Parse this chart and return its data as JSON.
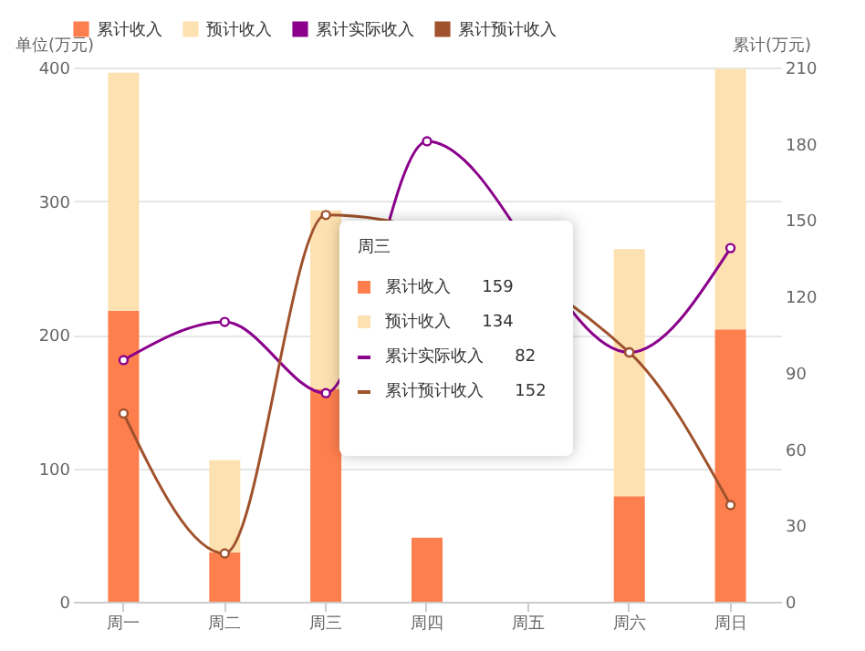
{
  "chart_data": {
    "type": "bar",
    "stacked": true,
    "ylabel": "单位(万元)",
    "y2label": "累计(万元)",
    "categories": [
      "周一",
      "周二",
      "周三",
      "周四",
      "周五",
      "周六",
      "周日"
    ],
    "series": [
      {
        "name": "累计收入",
        "color": "#fe7f4e",
        "values": [
          218,
          37,
          159,
          48,
          null,
          79,
          204
        ]
      },
      {
        "name": "预计收入",
        "color": "#fde1b0",
        "values": [
          178,
          69,
          134,
          null,
          null,
          185,
          195
        ]
      },
      {
        "name": "累计实际收入",
        "type": "line",
        "axis": "y2",
        "color": "#8b008b",
        "values": [
          95,
          110,
          82,
          181,
          null,
          98,
          139
        ]
      },
      {
        "name": "累计预计收入",
        "type": "line",
        "axis": "y2",
        "color": "#a0522d",
        "values": [
          74,
          19,
          152,
          null,
          null,
          98,
          38
        ]
      }
    ],
    "ylim": [
      0,
      400
    ],
    "yticks": [
      0,
      100,
      200,
      300,
      400
    ],
    "y2lim": [
      0,
      210
    ],
    "y2ticks": [
      0,
      30,
      60,
      90,
      120,
      150,
      180,
      210
    ],
    "grid": "y",
    "legend": "top",
    "marker": "circle",
    "line_style": "solid",
    "annotations": [
      "周三",
      "159",
      "134",
      "82",
      "152"
    ]
  }
}
